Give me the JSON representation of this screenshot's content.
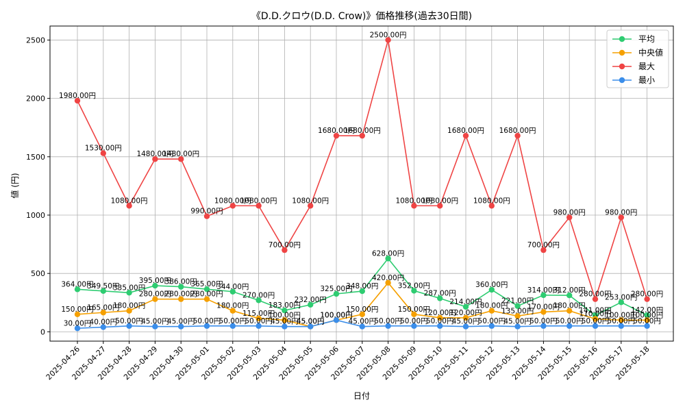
{
  "chart_data": {
    "type": "line",
    "title": "《D.D.クロウ(D.D. Crow)》価格推移(過去30日間)",
    "xlabel": "日付",
    "ylabel": "値 (円)",
    "ylim": [
      -80,
      2620
    ],
    "yticks": [
      0,
      500,
      1000,
      1500,
      2000,
      2500
    ],
    "grid": true,
    "legend_position": "top-right",
    "categories": [
      "2025-04-26",
      "2025-04-27",
      "2025-04-28",
      "2025-04-29",
      "2025-04-30",
      "2025-05-01",
      "2025-05-02",
      "2025-05-03",
      "2025-05-04",
      "2025-05-05",
      "2025-05-06",
      "2025-05-07",
      "2025-05-08",
      "2025-05-09",
      "2025-05-10",
      "2025-05-11",
      "2025-05-12",
      "2025-05-13",
      "2025-05-14",
      "2025-05-15",
      "2025-05-16",
      "2025-05-17",
      "2025-05-18"
    ],
    "series": [
      {
        "name": "平均",
        "color": "#2ecc71",
        "values": [
          364,
          349.5,
          335,
          395,
          386,
          365,
          344,
          270,
          183,
          232,
          325,
          348,
          628,
          352,
          287,
          214,
          360,
          221,
          314,
          312,
          141,
          253,
          142
        ],
        "labels": [
          "364.00円",
          "349.50円",
          "335.00円",
          "395.00円",
          "386.00円",
          "365.00円",
          "344.00円",
          "270.00円",
          "183.00円",
          "232.00円",
          "325.00円",
          "348.00円",
          "628.00円",
          "352.00円",
          "287.00円",
          "214.00円",
          "360.00円",
          "221.00円",
          "314.00円",
          "312.00円",
          "141.00円",
          "253.00円",
          "142.00円"
        ]
      },
      {
        "name": "中央値",
        "color": "#f5a000",
        "values": [
          150,
          165,
          180,
          280,
          280,
          280,
          180,
          115,
          100,
          45,
          100,
          150,
          420,
          150,
          120,
          120,
          180,
          135,
          170,
          180,
          110,
          100,
          100
        ],
        "labels": [
          "150.00円",
          "165.00円",
          "180.00円",
          "280.00円",
          "280.00円",
          "280.00円",
          "180.00円",
          "115.00円",
          "100.00円",
          "45.00円",
          "100.00円",
          "150.00円",
          "420.00円",
          "150.00円",
          "120.00円",
          "120.00円",
          "180.00円",
          "135.00円",
          "170.00円",
          "180.00円",
          "110.00円",
          "100.00円",
          "100.00円"
        ]
      },
      {
        "name": "最大",
        "color": "#ef4444",
        "values": [
          1980,
          1530,
          1080,
          1480,
          1480,
          990,
          1080,
          1080,
          700,
          1080,
          1680,
          1680,
          2500,
          1080,
          1080,
          1680,
          1080,
          1680,
          700,
          980,
          280,
          980,
          280
        ],
        "labels": [
          "1980.00円",
          "1530.00円",
          "1080.00円",
          "1480.00円",
          "1480.00円",
          "990.00円",
          "1080.00円",
          "1080.00円",
          "700.00円",
          "1080.00円",
          "1680.00円",
          "1680.00円",
          "2500.00円",
          "1080.00円",
          "1080.00円",
          "1680.00円",
          "1080.00円",
          "1680.00円",
          "700.00円",
          "980.00円",
          "280.00円",
          "980.00円",
          "280.00円"
        ]
      },
      {
        "name": "最小",
        "color": "#3b8eea",
        "values": [
          30,
          40,
          50,
          45,
          45,
          50,
          50,
          50,
          45,
          45,
          100,
          45,
          50,
          50,
          50,
          45,
          50,
          45,
          50,
          50,
          50,
          50,
          50
        ],
        "labels": [
          "30.00円",
          "40.00円",
          "50.00円",
          "45.00円",
          "45.00円",
          "50.00円",
          "50.00円",
          "50.00円",
          "45.00円",
          "45.00円",
          "100.00円",
          "45.00円",
          "50.00円",
          "50.00円",
          "50.00円",
          "45.00円",
          "50.00円",
          "45.00円",
          "50.00円",
          "50.00円",
          "50.00円",
          "50.00円",
          "50.00円"
        ]
      }
    ]
  }
}
